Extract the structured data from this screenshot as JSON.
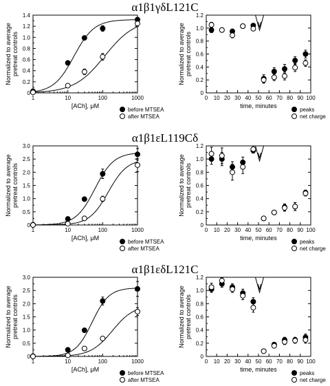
{
  "panels": [
    {
      "title": "α1β1γδL121C"
    },
    {
      "title": "α1β1εL119Cδ"
    },
    {
      "title": "α1β1εδL121C"
    }
  ],
  "chart_data": [
    {
      "type": "scatter",
      "row": 0,
      "side": "dose",
      "xlabel": "[ACh], μM",
      "ylabel": [
        "Normalized to average",
        "pretreat controls"
      ],
      "xscale": "log",
      "xlim": [
        1,
        1000
      ],
      "xticks": [
        1,
        10,
        100,
        1000
      ],
      "ylim": [
        0,
        1.4
      ],
      "yticks": [
        0,
        0.2,
        0.4,
        0.6,
        0.8,
        1.0,
        1.2,
        1.4
      ],
      "legend": [
        "before MTSEA",
        "after MTSEA"
      ],
      "legend_position": "bottom-right",
      "series": [
        {
          "name": "before MTSEA",
          "marker": "filled",
          "x": [
            1,
            10,
            30,
            100,
            1000
          ],
          "y": [
            0.03,
            0.54,
            0.99,
            1.16,
            1.32
          ],
          "err": [
            0,
            0.02,
            0.02,
            0.05,
            0.03
          ],
          "fit": {
            "top": 1.32,
            "ec50": 15,
            "n": 1.5
          }
        },
        {
          "name": "after MTSEA",
          "marker": "open",
          "x": [
            1,
            10,
            30,
            100,
            1000
          ],
          "y": [
            0.01,
            0.13,
            0.38,
            0.65,
            1.25
          ],
          "err": [
            0,
            0.02,
            0.05,
            0.06,
            0.05
          ],
          "fit": {
            "top": 1.33,
            "ec50": 115,
            "n": 1.0
          }
        }
      ]
    },
    {
      "type": "scatter",
      "row": 0,
      "side": "time",
      "xlabel": "time, minutes",
      "ylabel": [
        "Normalized to average",
        "pretreat controls"
      ],
      "xlim": [
        0,
        100
      ],
      "xticks": [
        0,
        10,
        20,
        30,
        40,
        50,
        60,
        70,
        80,
        90,
        100
      ],
      "ylim": [
        0,
        1.2
      ],
      "yticks": [
        0,
        0.2,
        0.4,
        0.6,
        0.8,
        1.0,
        1.2
      ],
      "legend": [
        "peaks",
        "net charge"
      ],
      "legend_position": "bottom-right",
      "arrow_at": 51,
      "series": [
        {
          "name": "peaks",
          "marker": "filled",
          "x": [
            5,
            15,
            25,
            35,
            45,
            55,
            65,
            75,
            85,
            95
          ],
          "y": [
            0.97,
            0.97,
            0.95,
            1.03,
            1.04,
            0.22,
            0.33,
            0.37,
            0.5,
            0.6
          ],
          "err": [
            0.04,
            0.03,
            0.03,
            0.03,
            0.02,
            0.06,
            0.06,
            0.07,
            0.06,
            0.06
          ]
        },
        {
          "name": "net charge",
          "marker": "open",
          "x": [
            5,
            15,
            25,
            35,
            45,
            55,
            65,
            75,
            85,
            95
          ],
          "y": [
            1.05,
            0.97,
            0.89,
            1.03,
            0.99,
            0.2,
            0.24,
            0.26,
            0.39,
            0.46
          ],
          "err": [
            0.04,
            0.03,
            0.04,
            0.03,
            0.03,
            0.05,
            0.05,
            0.06,
            0.06,
            0.05
          ]
        }
      ]
    },
    {
      "type": "scatter",
      "row": 1,
      "side": "dose",
      "xlabel": "[ACh], μM",
      "ylabel": [
        "Normalized to average",
        "pretreat controls"
      ],
      "xscale": "log",
      "xlim": [
        1,
        1000
      ],
      "xticks": [
        1,
        10,
        100,
        1000
      ],
      "ylim": [
        0,
        3.0
      ],
      "yticks": [
        0,
        0.5,
        1.0,
        1.5,
        2.0,
        2.5,
        3.0
      ],
      "legend": [
        "before MTSEA",
        "after MTSEA"
      ],
      "legend_position": "bottom-right",
      "series": [
        {
          "name": "before MTSEA",
          "marker": "filled",
          "x": [
            1,
            10,
            30,
            100,
            1000
          ],
          "y": [
            0.01,
            0.23,
            0.98,
            1.94,
            2.68
          ],
          "err": [
            0,
            0.03,
            0.06,
            0.18,
            0.22
          ],
          "fit": {
            "top": 2.75,
            "ec50": 60,
            "n": 1.6
          }
        },
        {
          "name": "after MTSEA",
          "marker": "open",
          "x": [
            1,
            10,
            30,
            100,
            1000
          ],
          "y": [
            0.0,
            0.05,
            0.25,
            0.99,
            2.27
          ],
          "err": [
            0,
            0.02,
            0.05,
            0.1,
            0.25
          ],
          "fit": {
            "top": 2.5,
            "ec50": 145,
            "n": 1.6
          }
        }
      ]
    },
    {
      "type": "scatter",
      "row": 1,
      "side": "time",
      "xlabel": "time, minutes",
      "ylabel": [
        "Normalized to average",
        "pretreat controls"
      ],
      "xlim": [
        0,
        100
      ],
      "xticks": [
        0,
        10,
        20,
        30,
        40,
        50,
        60,
        70,
        80,
        90,
        100
      ],
      "ylim": [
        0,
        1.2
      ],
      "yticks": [
        0,
        0.2,
        0.4,
        0.6,
        0.8,
        1.0,
        1.2
      ],
      "legend": [
        "peaks",
        "net charge"
      ],
      "legend_position": "bottom-right",
      "arrow_at": 51,
      "series": [
        {
          "name": "peaks",
          "marker": "filled",
          "x": [
            5,
            15,
            25,
            35,
            45,
            55,
            65,
            75,
            85,
            95
          ],
          "y": [
            1.0,
            1.0,
            0.88,
            0.95,
            1.13,
            0.1,
            0.19,
            0.27,
            0.28,
            0.49
          ],
          "err": [
            0.08,
            0.1,
            0.08,
            0.08,
            0.04,
            0.02,
            0.03,
            0.05,
            0.06,
            0.04
          ]
        },
        {
          "name": "net charge",
          "marker": "open",
          "x": [
            5,
            15,
            25,
            35,
            45,
            55,
            65,
            75,
            85,
            95
          ],
          "y": [
            1.08,
            1.05,
            0.8,
            0.88,
            1.15,
            0.1,
            0.19,
            0.26,
            0.28,
            0.48
          ],
          "err": [
            0.1,
            0.12,
            0.12,
            0.1,
            0.05,
            0.02,
            0.03,
            0.05,
            0.06,
            0.04
          ]
        }
      ]
    },
    {
      "type": "scatter",
      "row": 2,
      "side": "dose",
      "xlabel": "[ACh], μM",
      "ylabel": [
        "Normalized to average",
        "pretreat controls"
      ],
      "xscale": "log",
      "xlim": [
        1,
        1000
      ],
      "xticks": [
        1,
        10,
        100,
        1000
      ],
      "ylim": [
        0,
        3.0
      ],
      "yticks": [
        0,
        0.5,
        1.0,
        1.5,
        2.0,
        2.5,
        3.0
      ],
      "legend": [
        "before MTSEA",
        "after MTSEA"
      ],
      "legend_position": "bottom-right",
      "series": [
        {
          "name": "before MTSEA",
          "marker": "filled",
          "x": [
            1,
            10,
            30,
            100,
            1000
          ],
          "y": [
            0.01,
            0.25,
            0.99,
            2.1,
            2.56
          ],
          "err": [
            0,
            0.03,
            0.06,
            0.15,
            0.28
          ],
          "fit": {
            "top": 2.6,
            "ec50": 50,
            "n": 1.8
          }
        },
        {
          "name": "after MTSEA",
          "marker": "open",
          "x": [
            1,
            10,
            30,
            100,
            1000
          ],
          "y": [
            0.0,
            0.04,
            0.3,
            0.68,
            1.7
          ],
          "err": [
            0,
            0.02,
            0.05,
            0.06,
            0.15
          ],
          "fit": {
            "top": 1.95,
            "ec50": 190,
            "n": 1.4
          }
        }
      ]
    },
    {
      "type": "scatter",
      "row": 2,
      "side": "time",
      "xlabel": "time, minutes",
      "ylabel": [
        "Normalized to average",
        "pretreat controls"
      ],
      "xlim": [
        0,
        100
      ],
      "xticks": [
        0,
        10,
        20,
        30,
        40,
        50,
        60,
        70,
        80,
        90,
        100
      ],
      "ylim": [
        0,
        1.2
      ],
      "yticks": [
        0,
        0.2,
        0.4,
        0.6,
        0.8,
        1.0,
        1.2
      ],
      "legend": [
        "peaks",
        "net charge"
      ],
      "legend_position": "bottom-right",
      "arrow_at": 51,
      "series": [
        {
          "name": "peaks",
          "marker": "filled",
          "x": [
            5,
            15,
            25,
            35,
            45,
            55,
            65,
            75,
            85,
            95
          ],
          "y": [
            1.02,
            1.1,
            1.05,
            0.96,
            0.83,
            0.08,
            0.18,
            0.25,
            0.25,
            0.29
          ],
          "err": [
            0.05,
            0.05,
            0.05,
            0.06,
            0.06,
            0.02,
            0.03,
            0.04,
            0.04,
            0.05
          ]
        },
        {
          "name": "net charge",
          "marker": "open",
          "x": [
            5,
            15,
            25,
            35,
            45,
            55,
            65,
            75,
            85,
            95
          ],
          "y": [
            1.05,
            1.15,
            1.02,
            0.92,
            0.74,
            0.08,
            0.16,
            0.22,
            0.24,
            0.25
          ],
          "err": [
            0.06,
            0.04,
            0.05,
            0.06,
            0.07,
            0.02,
            0.03,
            0.04,
            0.04,
            0.05
          ]
        }
      ]
    }
  ]
}
